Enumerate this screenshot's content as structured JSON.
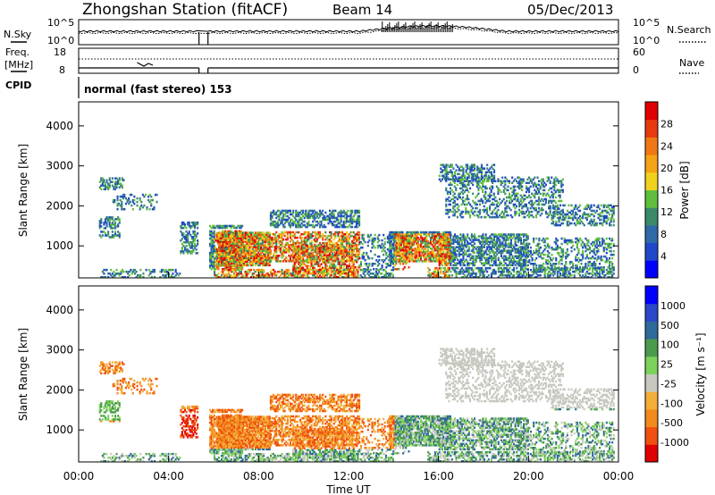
{
  "header": {
    "title": "Zhongshan Station (fitACF)",
    "beam": "Beam 14",
    "date": "05/Dec/2013"
  },
  "noise_panel": {
    "left_label": "N.Sky",
    "right_label": "N.Search",
    "left_ticks": [
      "10^5",
      "10^0"
    ],
    "right_ticks": [
      "10^5",
      "10^0"
    ]
  },
  "freq_panel": {
    "left_label_1": "Freq.",
    "left_label_2": "[MHz]",
    "right_label": "Nave",
    "left_ticks": [
      "18",
      "8"
    ],
    "right_ticks": [
      "60",
      "0"
    ]
  },
  "cpid": {
    "label": "CPID",
    "mode": "normal (fast stereo) 153"
  },
  "colors": {
    "power": [
      "#0000ff",
      "#1f47c8",
      "#2e6aa8",
      "#3a8a6a",
      "#5fbf3c",
      "#f0d21e",
      "#f5a316",
      "#f07814",
      "#e83a10",
      "#e00000"
    ],
    "velocity": [
      "#e00000",
      "#f05010",
      "#f08a1c",
      "#f3ae3a",
      "#c8c8c0",
      "#7cd25a",
      "#4c9a4c",
      "#2e6a9a",
      "#2a48c8",
      "#0000ff"
    ]
  },
  "chart_data": [
    {
      "type": "heatmap",
      "name": "power",
      "ylabel": "Slant Range [km]",
      "yticks": [
        "1000",
        "2000",
        "3000",
        "4000"
      ],
      "ylim": [
        200,
        4600
      ],
      "xlim": [
        0,
        24
      ],
      "colorbar_label": "Power [dB]",
      "colorbar_ticks": [
        "4",
        "8",
        "12",
        "16",
        "20",
        "24",
        "28"
      ],
      "colorbar_range": [
        0,
        30
      ]
    },
    {
      "type": "heatmap",
      "name": "velocity",
      "ylabel": "Slant Range [km]",
      "yticks": [
        "1000",
        "2000",
        "3000",
        "4000"
      ],
      "ylim": [
        200,
        4600
      ],
      "xlim": [
        0,
        24
      ],
      "colorbar_label": "Velocity [m s⁻¹]",
      "colorbar_ticks": [
        "-1000",
        "-500",
        "-100",
        "-25",
        "25",
        "100",
        "500",
        "1000"
      ]
    }
  ],
  "x_axis": {
    "ticks": [
      "00:00",
      "04:00",
      "08:00",
      "12:00",
      "16:00",
      "20:00",
      "00:00"
    ],
    "label": "Time UT"
  }
}
